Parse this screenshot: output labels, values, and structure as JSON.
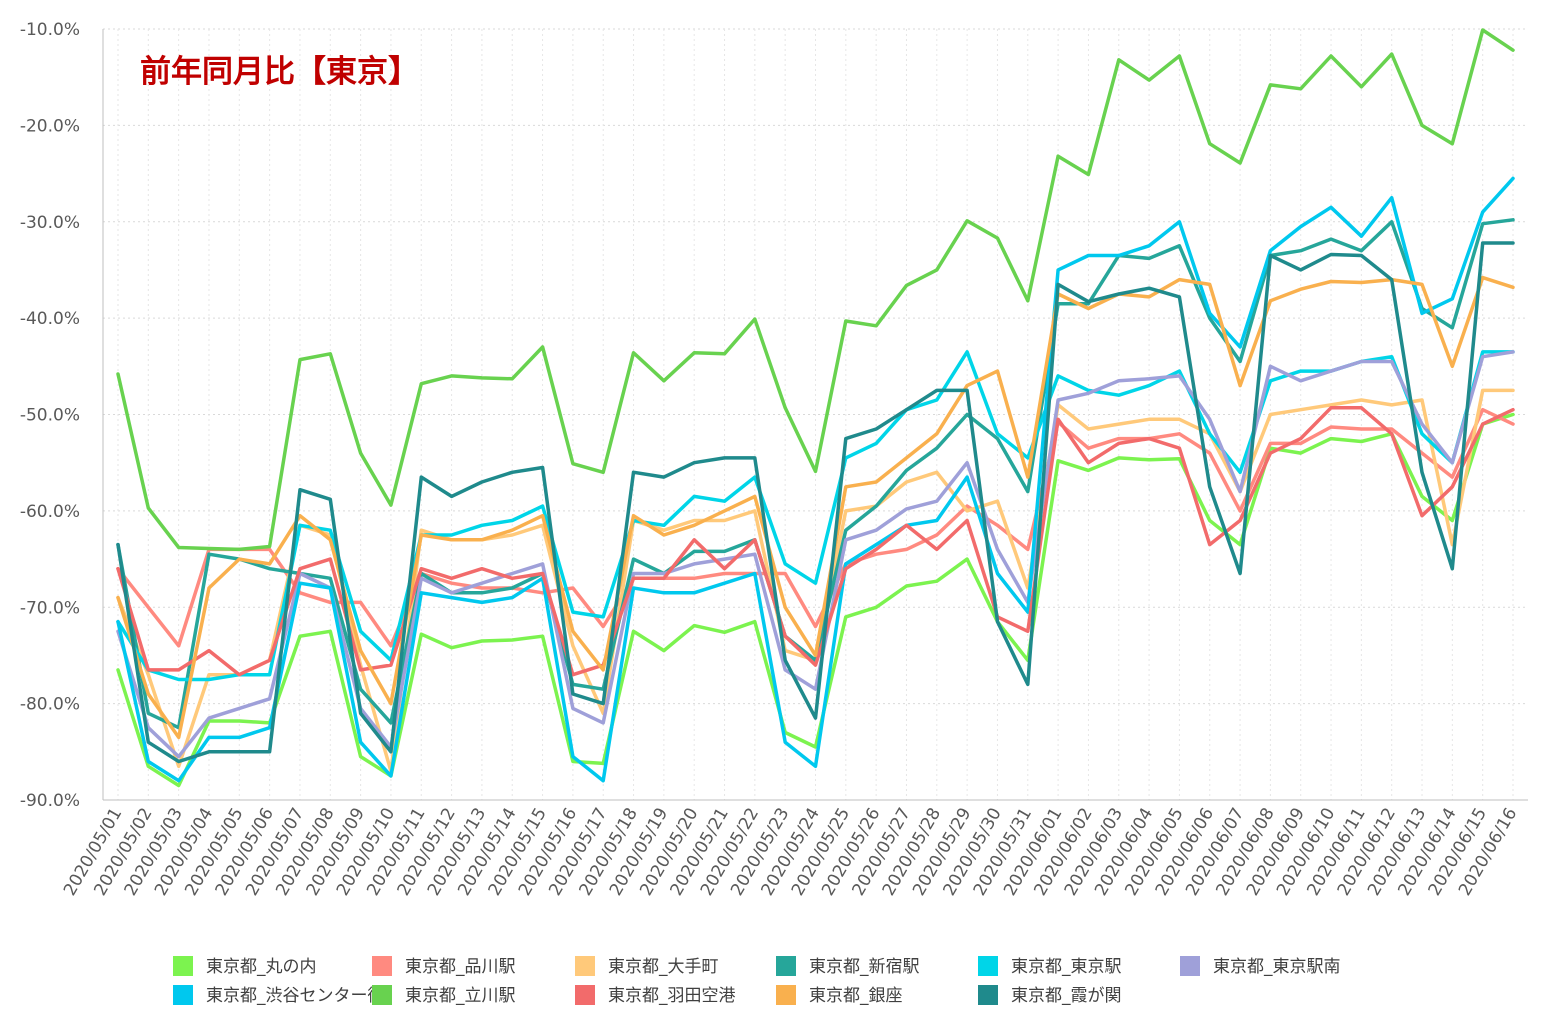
{
  "chart_data": {
    "type": "line",
    "title": "前年同月比【東京】",
    "xlabel": "",
    "ylabel": "",
    "ylim": [
      -90,
      -10
    ],
    "ytick_step": 10,
    "ytick_format": "percent_1dp",
    "grid": true,
    "legend_position": "bottom",
    "categories": [
      "2020/05/01",
      "2020/05/02",
      "2020/05/03",
      "2020/05/04",
      "2020/05/05",
      "2020/05/06",
      "2020/05/07",
      "2020/05/08",
      "2020/05/09",
      "2020/05/10",
      "2020/05/11",
      "2020/05/12",
      "2020/05/13",
      "2020/05/14",
      "2020/05/15",
      "2020/05/16",
      "2020/05/17",
      "2020/05/18",
      "2020/05/19",
      "2020/05/20",
      "2020/05/21",
      "2020/05/22",
      "2020/05/23",
      "2020/05/24",
      "2020/05/25",
      "2020/05/26",
      "2020/05/27",
      "2020/05/28",
      "2020/05/29",
      "2020/05/30",
      "2020/05/31",
      "2020/06/01",
      "2020/06/02",
      "2020/06/03",
      "2020/06/04",
      "2020/06/05",
      "2020/06/06",
      "2020/06/07",
      "2020/06/08",
      "2020/06/09",
      "2020/06/10",
      "2020/06/11",
      "2020/06/12",
      "2020/06/13",
      "2020/06/14",
      "2020/06/15",
      "2020/06/16"
    ],
    "series": [
      {
        "name": "東京都_丸の内",
        "color": "#7cf34f",
        "values": [
          -76.5,
          -86.5,
          -88.5,
          -81.8,
          -81.8,
          -82.0,
          -73.0,
          -72.5,
          -85.5,
          -87.5,
          -72.8,
          -74.2,
          -73.5,
          -73.4,
          -73.0,
          -86.0,
          -86.2,
          -72.5,
          -74.5,
          -71.9,
          -72.6,
          -71.5,
          -83.0,
          -84.5,
          -71.0,
          -70.0,
          -67.8,
          -67.3,
          -65.0,
          -71.5,
          -75.5,
          -54.8,
          -55.8,
          -54.5,
          -54.7,
          -54.6,
          -61.0,
          -63.5,
          -53.5,
          -54.0,
          -52.5,
          -52.8,
          -52.0,
          -58.5,
          -61.0,
          -51.0,
          -50.0
        ]
      },
      {
        "name": "東京都_品川駅",
        "color": "#ff8a80",
        "values": [
          -66.0,
          -70.0,
          -74.0,
          -64.0,
          -64.0,
          -64.0,
          -68.5,
          -69.5,
          -69.5,
          -74.0,
          -66.5,
          -67.5,
          -68.0,
          -68.0,
          -68.5,
          -68.0,
          -72.0,
          -67.0,
          -67.0,
          -67.0,
          -66.5,
          -66.5,
          -66.5,
          -72.0,
          -65.5,
          -64.5,
          -64.0,
          -62.5,
          -59.5,
          -61.5,
          -64.0,
          -50.8,
          -53.5,
          -52.5,
          -52.5,
          -52.0,
          -54.0,
          -60.0,
          -53.0,
          -53.0,
          -51.3,
          -51.5,
          -51.5,
          -54.0,
          -56.5,
          -49.5,
          -51.0
        ]
      },
      {
        "name": "東京都_大手町",
        "color": "#ffc97a",
        "values": [
          -69.0,
          -77.0,
          -86.5,
          -77.0,
          -77.0,
          -75.5,
          -61.5,
          -62.5,
          -76.0,
          -87.0,
          -62.0,
          -63.0,
          -63.0,
          -62.5,
          -61.5,
          -74.0,
          -81.0,
          -61.0,
          -62.0,
          -61.0,
          -61.0,
          -60.0,
          -74.5,
          -75.5,
          -60.0,
          -59.5,
          -57.0,
          -56.0,
          -60.0,
          -59.0,
          -68.0,
          -49.0,
          -51.5,
          -51.0,
          -50.5,
          -50.5,
          -52.0,
          -58.0,
          -50.0,
          -49.5,
          -49.0,
          -48.5,
          -49.0,
          -48.5,
          -63.5,
          -47.5,
          -47.5
        ]
      },
      {
        "name": "東京都_新宿駅",
        "color": "#26a69a",
        "values": [
          -63.5,
          -81.0,
          -82.5,
          -64.5,
          -65.0,
          -66.0,
          -66.5,
          -67.0,
          -78.5,
          -82.0,
          -66.5,
          -68.5,
          -68.5,
          -68.0,
          -66.5,
          -78.0,
          -78.5,
          -65.0,
          -66.5,
          -64.2,
          -64.2,
          -63.0,
          -73.0,
          -75.5,
          -62.0,
          -59.5,
          -55.8,
          -53.5,
          -50.0,
          -52.5,
          -58.0,
          -38.5,
          -38.5,
          -33.5,
          -33.8,
          -32.5,
          -40.0,
          -44.5,
          -33.5,
          -33.0,
          -31.8,
          -33.0,
          -30.0,
          -39.0,
          -41.0,
          -30.2,
          -29.8
        ]
      },
      {
        "name": "東京都_東京駅",
        "color": "#00d5e8",
        "values": [
          -71.5,
          -76.5,
          -77.5,
          -77.5,
          -77.0,
          -77.0,
          -61.5,
          -62.0,
          -72.5,
          -75.5,
          -62.5,
          -62.5,
          -61.5,
          -61.0,
          -59.5,
          -70.5,
          -71.0,
          -61.0,
          -61.5,
          -58.5,
          -59.0,
          -56.5,
          -65.5,
          -67.5,
          -54.5,
          -53.0,
          -49.5,
          -48.5,
          -43.5,
          -52.0,
          -54.5,
          -46.0,
          -47.5,
          -48.0,
          -47.0,
          -45.5,
          -52.0,
          -56.0,
          -46.5,
          -45.5,
          -45.5,
          -44.5,
          -44.0,
          -52.0,
          -55.0,
          -43.5,
          -43.5
        ]
      },
      {
        "name": "東京都_東京駅南",
        "color": "#9fa0d9",
        "values": [
          -72.5,
          -82.5,
          -85.5,
          -81.5,
          -80.5,
          -79.5,
          -66.5,
          -68.0,
          -80.5,
          -84.5,
          -67.0,
          -68.5,
          -67.5,
          -66.5,
          -65.5,
          -80.5,
          -82.0,
          -66.5,
          -66.5,
          -65.5,
          -65.0,
          -64.5,
          -76.5,
          -78.5,
          -63.0,
          -62.0,
          -59.8,
          -59.0,
          -55.0,
          -64.0,
          -69.5,
          -48.5,
          -47.8,
          -46.5,
          -46.3,
          -46.0,
          -50.5,
          -58.0,
          -45.0,
          -46.5,
          -45.5,
          -44.5,
          -44.5,
          -51.0,
          -55.0,
          -44.0,
          -43.5
        ]
      },
      {
        "name": "東京都_渋谷センター街",
        "color": "#00c8ee",
        "values": [
          -71.5,
          -86.0,
          -88.0,
          -83.5,
          -83.5,
          -82.5,
          -67.5,
          -68.0,
          -84.0,
          -87.5,
          -68.5,
          -69.0,
          -69.5,
          -69.0,
          -67.0,
          -85.5,
          -88.0,
          -68.0,
          -68.5,
          -68.5,
          -67.5,
          -66.5,
          -84.0,
          -86.5,
          -65.5,
          -63.5,
          -61.5,
          -61.0,
          -56.5,
          -66.5,
          -70.5,
          -35.0,
          -33.5,
          -33.5,
          -32.5,
          -30.0,
          -39.5,
          -43.0,
          -33.0,
          -30.5,
          -28.5,
          -31.5,
          -27.5,
          -39.5,
          -38.0,
          -29.0,
          -25.5
        ]
      },
      {
        "name": "東京都_立川駅",
        "color": "#68d24f",
        "values": [
          -45.8,
          -59.7,
          -63.8,
          -63.9,
          -64.0,
          -63.7,
          -44.3,
          -43.7,
          -54.0,
          -59.4,
          -46.8,
          -46.0,
          -46.2,
          -46.3,
          -43.0,
          -55.1,
          -56.0,
          -43.6,
          -46.5,
          -43.6,
          -43.7,
          -40.1,
          -49.3,
          -55.9,
          -40.3,
          -40.8,
          -36.6,
          -35.0,
          -29.9,
          -31.7,
          -38.2,
          -23.2,
          -25.1,
          -13.2,
          -15.3,
          -12.8,
          -21.9,
          -23.9,
          -15.8,
          -16.2,
          -12.8,
          -16.0,
          -12.6,
          -20.0,
          -21.9,
          -10.1,
          -12.2
        ]
      },
      {
        "name": "東京都_羽田空港",
        "color": "#f26b6b",
        "values": [
          -66.0,
          -76.5,
          -76.5,
          -74.5,
          -77.0,
          -75.5,
          -66.0,
          -65.0,
          -76.5,
          -76.0,
          -66.0,
          -67.0,
          -66.0,
          -67.0,
          -66.5,
          -77.0,
          -76.0,
          -67.0,
          -67.0,
          -63.0,
          -66.0,
          -63.0,
          -73.0,
          -76.0,
          -66.0,
          -64.0,
          -61.5,
          -64.0,
          -61.0,
          -71.0,
          -72.5,
          -50.5,
          -55.0,
          -53.0,
          -52.5,
          -53.5,
          -63.5,
          -61.0,
          -54.0,
          -52.5,
          -49.3,
          -49.3,
          -52.0,
          -60.5,
          -57.5,
          -51.0,
          -49.5
        ]
      },
      {
        "name": "東京都_銀座",
        "color": "#f9b04e",
        "values": [
          -69.0,
          -79.0,
          -83.5,
          -68.0,
          -65.0,
          -65.5,
          -60.5,
          -63.0,
          -74.5,
          -80.0,
          -62.5,
          -63.0,
          -63.0,
          -62.0,
          -60.5,
          -72.5,
          -76.5,
          -60.5,
          -62.5,
          -61.5,
          -60.0,
          -58.5,
          -70.0,
          -75.0,
          -57.5,
          -57.0,
          -54.5,
          -52.0,
          -47.0,
          -45.5,
          -56.5,
          -37.5,
          -39.0,
          -37.5,
          -37.8,
          -36.0,
          -36.5,
          -47.0,
          -38.2,
          -37.0,
          -36.2,
          -36.3,
          -36.0,
          -36.5,
          -45.0,
          -35.8,
          -36.8
        ]
      },
      {
        "name": "東京都_霞が関",
        "color": "#1f8a8c",
        "values": [
          -63.5,
          -84.0,
          -86.0,
          -85.0,
          -85.0,
          -85.0,
          -57.8,
          -58.8,
          -81.0,
          -85.0,
          -56.5,
          -58.5,
          -57.0,
          -56.0,
          -55.5,
          -79.0,
          -80.0,
          -56.0,
          -56.5,
          -55.0,
          -54.5,
          -54.5,
          -75.5,
          -81.5,
          -52.5,
          -51.5,
          -49.5,
          -47.5,
          -47.5,
          -71.5,
          -78.0,
          -36.5,
          -38.3,
          -37.5,
          -36.9,
          -37.8,
          -57.5,
          -66.5,
          -33.5,
          -35.0,
          -33.4,
          -33.5,
          -36.0,
          -56.0,
          -66.0,
          -32.2,
          -32.2
        ]
      }
    ]
  }
}
